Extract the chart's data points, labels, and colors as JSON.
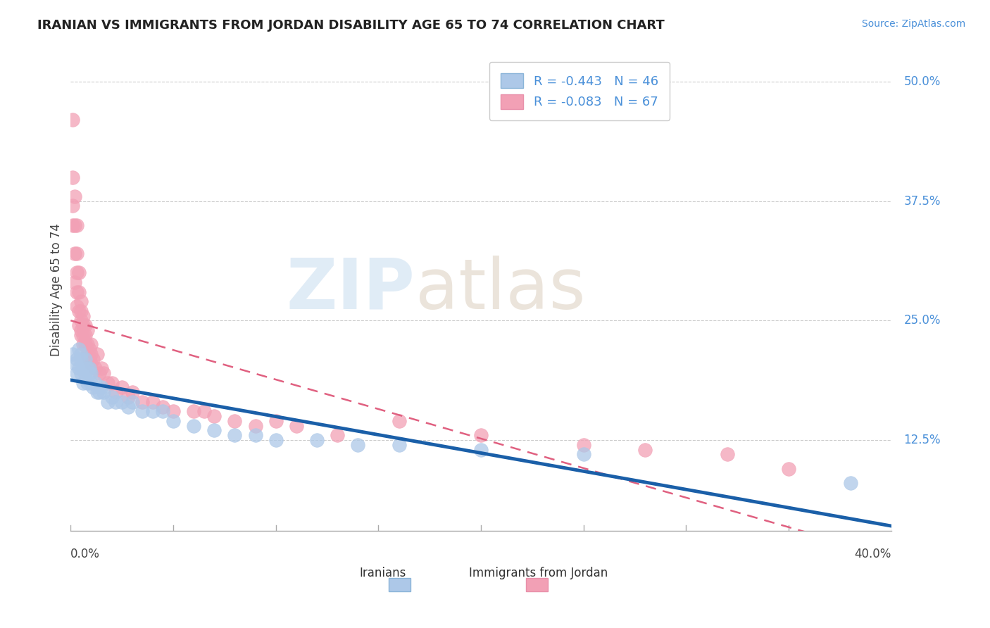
{
  "title": "IRANIAN VS IMMIGRANTS FROM JORDAN DISABILITY AGE 65 TO 74 CORRELATION CHART",
  "source": "Source: ZipAtlas.com",
  "ylabel": "Disability Age 65 to 74",
  "ytick_labels": [
    "12.5%",
    "25.0%",
    "37.5%",
    "50.0%"
  ],
  "ytick_values": [
    0.125,
    0.25,
    0.375,
    0.5
  ],
  "xmin": 0.0,
  "xmax": 0.4,
  "ymin": 0.03,
  "ymax": 0.535,
  "legend_iranian": "R = -0.443   N = 46",
  "legend_jordan": "R = -0.083   N = 67",
  "color_iranian": "#adc8e8",
  "color_jordan": "#f2a0b5",
  "color_iranian_line": "#1a5fa8",
  "color_jordan_line": "#e06080",
  "iranians_x": [
    0.001,
    0.002,
    0.003,
    0.003,
    0.004,
    0.004,
    0.005,
    0.005,
    0.005,
    0.006,
    0.006,
    0.007,
    0.007,
    0.008,
    0.008,
    0.009,
    0.009,
    0.01,
    0.01,
    0.011,
    0.012,
    0.013,
    0.014,
    0.015,
    0.016,
    0.018,
    0.02,
    0.022,
    0.025,
    0.028,
    0.03,
    0.035,
    0.04,
    0.045,
    0.05,
    0.06,
    0.07,
    0.08,
    0.09,
    0.1,
    0.12,
    0.14,
    0.16,
    0.2,
    0.25,
    0.38
  ],
  "iranians_y": [
    0.215,
    0.205,
    0.21,
    0.195,
    0.2,
    0.22,
    0.215,
    0.195,
    0.21,
    0.2,
    0.185,
    0.195,
    0.21,
    0.2,
    0.185,
    0.195,
    0.2,
    0.185,
    0.195,
    0.18,
    0.185,
    0.175,
    0.175,
    0.18,
    0.175,
    0.165,
    0.17,
    0.165,
    0.165,
    0.16,
    0.165,
    0.155,
    0.155,
    0.155,
    0.145,
    0.14,
    0.135,
    0.13,
    0.13,
    0.125,
    0.125,
    0.12,
    0.12,
    0.115,
    0.11,
    0.08
  ],
  "jordan_x": [
    0.001,
    0.001,
    0.001,
    0.001,
    0.002,
    0.002,
    0.002,
    0.002,
    0.003,
    0.003,
    0.003,
    0.003,
    0.003,
    0.004,
    0.004,
    0.004,
    0.004,
    0.005,
    0.005,
    0.005,
    0.005,
    0.005,
    0.006,
    0.006,
    0.006,
    0.006,
    0.007,
    0.007,
    0.007,
    0.008,
    0.008,
    0.008,
    0.009,
    0.009,
    0.01,
    0.01,
    0.01,
    0.011,
    0.012,
    0.013,
    0.014,
    0.015,
    0.016,
    0.018,
    0.02,
    0.022,
    0.025,
    0.028,
    0.03,
    0.035,
    0.04,
    0.045,
    0.05,
    0.06,
    0.065,
    0.07,
    0.08,
    0.09,
    0.1,
    0.11,
    0.13,
    0.16,
    0.2,
    0.25,
    0.28,
    0.32,
    0.35
  ],
  "jordan_y": [
    0.46,
    0.4,
    0.37,
    0.35,
    0.38,
    0.35,
    0.32,
    0.29,
    0.35,
    0.32,
    0.3,
    0.28,
    0.265,
    0.3,
    0.28,
    0.26,
    0.245,
    0.27,
    0.26,
    0.25,
    0.24,
    0.235,
    0.255,
    0.245,
    0.235,
    0.225,
    0.245,
    0.235,
    0.225,
    0.24,
    0.225,
    0.215,
    0.22,
    0.21,
    0.225,
    0.215,
    0.205,
    0.21,
    0.2,
    0.215,
    0.195,
    0.2,
    0.195,
    0.185,
    0.185,
    0.175,
    0.18,
    0.17,
    0.175,
    0.165,
    0.165,
    0.16,
    0.155,
    0.155,
    0.155,
    0.15,
    0.145,
    0.14,
    0.145,
    0.14,
    0.13,
    0.145,
    0.13,
    0.12,
    0.115,
    0.11,
    0.095
  ]
}
